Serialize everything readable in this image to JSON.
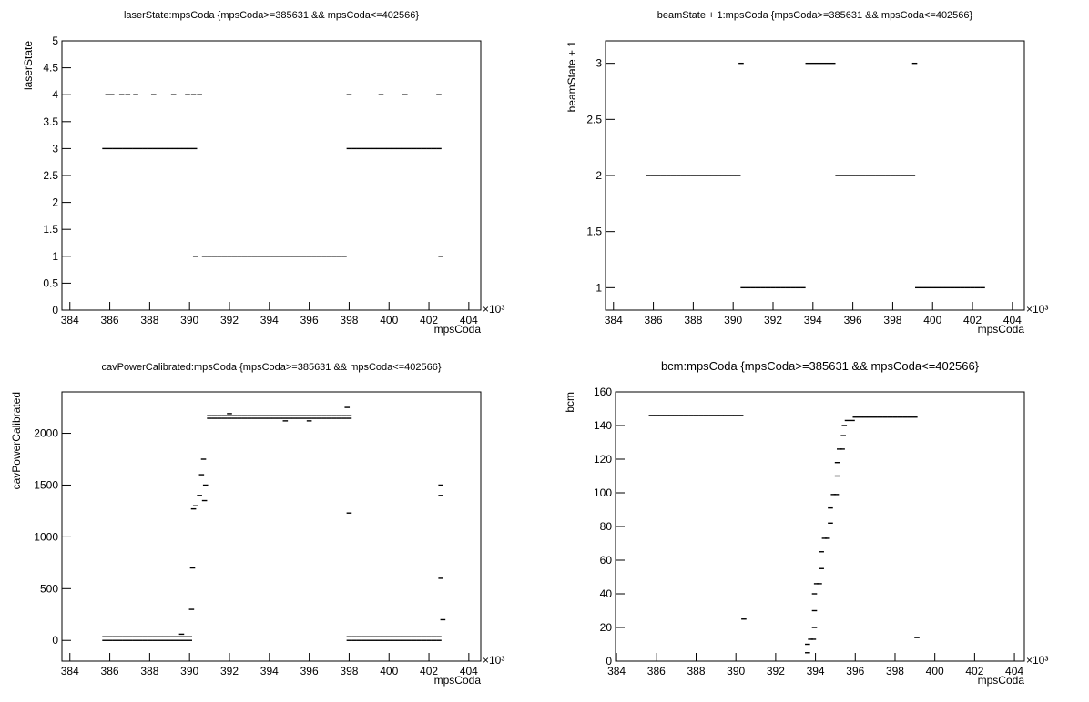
{
  "chart_data": [
    {
      "type": "scatter",
      "title": "laserState:mpsCoda {mpsCoda>=385631 && mpsCoda<=402566}",
      "x_label": "mpsCoda",
      "y_label": "laserState",
      "x_multiplier": "×10³",
      "color": "#000000",
      "xlim": [
        383.6,
        404.6
      ],
      "xticks": [
        384,
        386,
        388,
        390,
        392,
        394,
        396,
        398,
        400,
        402,
        404
      ],
      "ylim": [
        0,
        5
      ],
      "yticks": [
        0,
        0.5,
        1,
        1.5,
        2,
        2.5,
        3,
        3.5,
        4,
        4.5,
        5
      ],
      "x": [
        385.75,
        386,
        386.25,
        386.5,
        386.75,
        387,
        387.25,
        387.5,
        387.75,
        388,
        388.25,
        388.5,
        388.75,
        389,
        389.25,
        389.5,
        389.75,
        390,
        390.25,
        390.75,
        391,
        391.25,
        391.5,
        391.75,
        392,
        392.25,
        392.5,
        392.75,
        393,
        393.25,
        393.5,
        393.75,
        394,
        394.25,
        394.5,
        394.75,
        395,
        395.25,
        395.5,
        395.75,
        396,
        396.25,
        396.5,
        396.75,
        397,
        397.25,
        397.5,
        397.75,
        398,
        398.25,
        398.5,
        398.75,
        399,
        399.25,
        399.5,
        399.75,
        400,
        400.25,
        400.5,
        400.75,
        401,
        401.25,
        401.5,
        401.75,
        402,
        402.25,
        402.5,
        385.9,
        386.1,
        386.6,
        386.9,
        387.3,
        388.2,
        389.2,
        389.9,
        390.2,
        390.5,
        398,
        399.6,
        400.8,
        402.5,
        390.3,
        402.6
      ],
      "y": [
        3,
        3,
        3,
        3,
        3,
        3,
        3,
        3,
        3,
        3,
        3,
        3,
        3,
        3,
        3,
        3,
        3,
        3,
        3,
        1,
        1,
        1,
        1,
        1,
        1,
        1,
        1,
        1,
        1,
        1,
        1,
        1,
        1,
        1,
        1,
        1,
        1,
        1,
        1,
        1,
        1,
        1,
        1,
        1,
        1,
        1,
        1,
        1,
        3,
        3,
        3,
        3,
        3,
        3,
        3,
        3,
        3,
        3,
        3,
        3,
        3,
        3,
        3,
        3,
        3,
        3,
        3,
        4,
        4,
        4,
        4,
        4,
        4,
        4,
        4,
        4,
        4,
        4,
        4,
        4,
        4,
        1,
        1
      ]
    },
    {
      "type": "scatter",
      "title": "beamState + 1:mpsCoda {mpsCoda>=385631 && mpsCoda<=402566}",
      "x_label": "mpsCoda",
      "y_label": "beamState + 1",
      "x_multiplier": "×10³",
      "color": "#000000",
      "xlim": [
        383.6,
        404.6
      ],
      "xticks": [
        384,
        386,
        388,
        390,
        392,
        394,
        396,
        398,
        400,
        402,
        404
      ],
      "ylim": [
        0.8,
        3.2
      ],
      "yticks": [
        1,
        1.5,
        2,
        2.5,
        3
      ],
      "x": [
        385.75,
        386,
        386.25,
        386.5,
        386.75,
        387,
        387.25,
        387.5,
        387.75,
        388,
        388.25,
        388.5,
        388.75,
        389,
        389.25,
        389.5,
        389.75,
        390,
        390.25,
        390.5,
        390.75,
        391,
        391.25,
        391.5,
        391.75,
        392,
        392.25,
        392.5,
        392.75,
        393,
        393.25,
        393.5,
        393.75,
        394,
        394.25,
        394.5,
        394.75,
        395,
        395.25,
        395.5,
        395.75,
        396,
        396.25,
        396.5,
        396.75,
        397,
        397.25,
        397.5,
        397.75,
        398,
        398.25,
        398.5,
        398.75,
        399,
        399.25,
        399.5,
        399.75,
        400,
        400.25,
        400.5,
        400.75,
        401,
        401.25,
        401.5,
        401.75,
        402,
        402.25,
        402.5,
        390.4,
        399.1
      ],
      "y": [
        2,
        2,
        2,
        2,
        2,
        2,
        2,
        2,
        2,
        2,
        2,
        2,
        2,
        2,
        2,
        2,
        2,
        2,
        2,
        1,
        1,
        1,
        1,
        1,
        1,
        1,
        1,
        1,
        1,
        1,
        1,
        1,
        3,
        3,
        3,
        3,
        3,
        3,
        2,
        2,
        2,
        2,
        2,
        2,
        2,
        2,
        2,
        2,
        2,
        2,
        2,
        2,
        2,
        2,
        1,
        1,
        1,
        1,
        1,
        1,
        1,
        1,
        1,
        1,
        1,
        1,
        1,
        1,
        3,
        3
      ]
    },
    {
      "type": "scatter",
      "title": "cavPowerCalibrated:mpsCoda {mpsCoda>=385631 && mpsCoda<=402566}",
      "x_label": "mpsCoda",
      "y_label": "cavPowerCalibrated",
      "x_multiplier": "×10³",
      "color": "#000000",
      "xlim": [
        383.6,
        404.6
      ],
      "xticks": [
        384,
        386,
        388,
        390,
        392,
        394,
        396,
        398,
        400,
        402,
        404
      ],
      "ylim": [
        -200,
        2400
      ],
      "yticks": [
        0,
        500,
        1000,
        1500,
        2000
      ],
      "x": [
        385.75,
        386,
        386.25,
        386.5,
        386.75,
        387,
        387.25,
        387.5,
        387.75,
        388,
        388.25,
        388.5,
        388.75,
        389,
        389.25,
        389.5,
        389.75,
        390,
        385.75,
        386,
        386.25,
        386.5,
        386.75,
        387,
        387.25,
        387.5,
        387.75,
        388,
        388.25,
        388.5,
        388.75,
        389,
        389.25,
        389.5,
        389.75,
        390,
        391,
        391.25,
        391.5,
        391.75,
        392,
        392.25,
        392.5,
        392.75,
        393,
        393.25,
        393.5,
        393.75,
        394,
        394.25,
        394.5,
        394.75,
        395,
        395.25,
        395.5,
        395.75,
        396,
        396.25,
        396.5,
        396.75,
        397,
        397.25,
        397.5,
        397.75,
        398,
        391,
        391.25,
        391.5,
        391.75,
        392,
        392.25,
        392.5,
        392.75,
        393,
        393.25,
        393.5,
        393.75,
        394,
        394.25,
        394.5,
        394.75,
        395,
        395.25,
        395.5,
        395.75,
        396,
        396.25,
        396.5,
        396.75,
        397,
        397.25,
        397.5,
        397.75,
        398,
        398,
        398.25,
        398.5,
        398.75,
        399,
        399.25,
        399.5,
        399.75,
        400,
        400.25,
        400.5,
        400.75,
        401,
        401.25,
        401.5,
        401.75,
        402,
        402.25,
        402.5,
        398,
        398.25,
        398.5,
        398.75,
        399,
        399.25,
        399.5,
        399.75,
        400,
        400.25,
        400.5,
        400.75,
        401,
        401.25,
        401.5,
        401.75,
        402,
        402.25,
        402.5,
        390.1,
        390.15,
        390.2,
        390.3,
        390.5,
        390.6,
        390.7,
        390.8,
        390.75,
        392,
        394.8,
        396,
        398,
        397.9,
        402.6,
        402.6,
        402.6,
        402.7,
        389.6
      ],
      "y": [
        0,
        0,
        0,
        0,
        0,
        0,
        0,
        0,
        0,
        0,
        0,
        0,
        0,
        0,
        0,
        0,
        0,
        0,
        35,
        35,
        35,
        35,
        35,
        35,
        35,
        35,
        35,
        35,
        35,
        35,
        35,
        35,
        35,
        35,
        35,
        35,
        2145,
        2145,
        2145,
        2145,
        2145,
        2145,
        2145,
        2145,
        2145,
        2145,
        2145,
        2145,
        2145,
        2145,
        2145,
        2145,
        2145,
        2145,
        2145,
        2145,
        2145,
        2145,
        2145,
        2145,
        2145,
        2145,
        2145,
        2145,
        2145,
        2170,
        2170,
        2170,
        2170,
        2170,
        2170,
        2170,
        2170,
        2170,
        2170,
        2170,
        2170,
        2170,
        2170,
        2170,
        2170,
        2170,
        2170,
        2170,
        2170,
        2170,
        2170,
        2170,
        2170,
        2170,
        2170,
        2170,
        2170,
        2170,
        0,
        0,
        0,
        0,
        0,
        0,
        0,
        0,
        0,
        0,
        0,
        0,
        0,
        0,
        0,
        0,
        0,
        0,
        0,
        35,
        35,
        35,
        35,
        35,
        35,
        35,
        35,
        35,
        35,
        35,
        35,
        35,
        35,
        35,
        35,
        35,
        35,
        35,
        300,
        700,
        1270,
        1300,
        1400,
        1600,
        1750,
        1500,
        1350,
        2190,
        2120,
        2120,
        1230,
        2250,
        1500,
        1400,
        600,
        200,
        60
      ]
    },
    {
      "type": "scatter",
      "title": "bcm:mpsCoda {mpsCoda>=385631 && mpsCoda<=402566}",
      "x_label": "mpsCoda",
      "y_label": "bcm",
      "x_multiplier": "×10³",
      "color": "#000000",
      "xlim": [
        383.95,
        404.5
      ],
      "xticks": [
        384,
        386,
        388,
        390,
        392,
        394,
        396,
        398,
        400,
        402,
        404
      ],
      "ylim": [
        0,
        160
      ],
      "yticks": [
        0,
        20,
        40,
        60,
        80,
        100,
        120,
        140,
        160
      ],
      "x": [
        385.75,
        386,
        386.25,
        386.5,
        386.75,
        387,
        387.25,
        387.5,
        387.75,
        388,
        388.25,
        388.5,
        388.75,
        389,
        389.25,
        389.5,
        389.75,
        390,
        390.25,
        390.4,
        393.6,
        393.6,
        393.75,
        393.9,
        393.95,
        393.95,
        393.95,
        394.05,
        394.2,
        394.3,
        394.3,
        394.45,
        394.6,
        394.75,
        394.75,
        394.9,
        395.05,
        395.1,
        395.1,
        395.2,
        395.35,
        395.4,
        395.45,
        395.6,
        395.85,
        399.1,
        396,
        396.25,
        396.5,
        396.75,
        397,
        397.25,
        397.5,
        397.75,
        398,
        398.25,
        398.5,
        398.75,
        399
      ],
      "y": [
        146,
        146,
        146,
        146,
        146,
        146,
        146,
        146,
        146,
        146,
        146,
        146,
        146,
        146,
        146,
        146,
        146,
        146,
        146,
        25,
        5,
        10,
        13,
        13,
        20,
        30,
        40,
        46,
        46,
        55,
        65,
        73,
        73,
        82,
        91,
        99,
        99,
        110,
        118,
        126,
        126,
        134,
        140,
        143,
        143,
        14,
        145,
        145,
        145,
        145,
        145,
        145,
        145,
        145,
        145,
        145,
        145,
        145,
        145
      ]
    }
  ]
}
